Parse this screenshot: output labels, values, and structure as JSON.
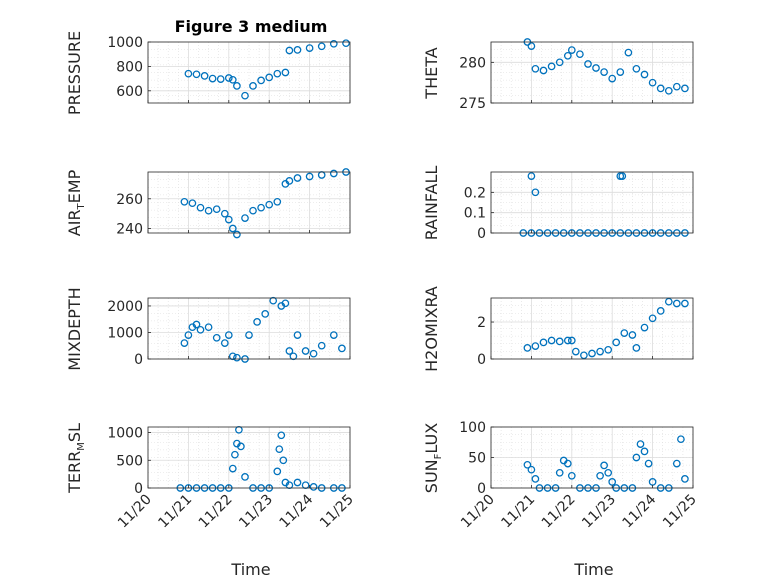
{
  "figure_title": "Figure 3 medium",
  "xlabel": "Time",
  "x_tick_labels": [
    "11/20",
    "11/21",
    "11/22",
    "11/23",
    "11/24",
    "11/25"
  ],
  "colors": {
    "marker": "#0072BD",
    "axis": "#262626",
    "grid": "#dcdcdc"
  },
  "chart_data": [
    {
      "id": "pressure",
      "type": "scatter",
      "title": "Figure 3 medium",
      "ylabel": "PRESSURE",
      "ylim": [
        500,
        1000
      ],
      "yticks": [
        600,
        800,
        1000
      ],
      "ytick_labels": [
        "600",
        "800",
        "1000"
      ],
      "x": [
        21.0,
        21.2,
        21.4,
        21.6,
        21.8,
        22.0,
        22.1,
        22.2,
        22.4,
        22.6,
        22.8,
        23.0,
        23.2,
        23.4,
        23.5,
        23.7,
        24.0,
        24.3,
        24.6,
        24.9
      ],
      "y": [
        740,
        735,
        722,
        700,
        696,
        705,
        690,
        640,
        560,
        640,
        685,
        710,
        740,
        750,
        930,
        935,
        950,
        965,
        985,
        990
      ]
    },
    {
      "id": "theta",
      "type": "scatter",
      "ylabel": "THETA",
      "ylim": [
        275,
        282.5
      ],
      "yticks": [
        275,
        280
      ],
      "ytick_labels": [
        "275",
        "280"
      ],
      "x": [
        20.9,
        21.0,
        21.1,
        21.3,
        21.5,
        21.7,
        21.9,
        22.0,
        22.2,
        22.4,
        22.6,
        22.8,
        23.0,
        23.2,
        23.4,
        23.6,
        23.8,
        24.0,
        24.2,
        24.4,
        24.6,
        24.8
      ],
      "y": [
        282.5,
        282.0,
        279.2,
        279.0,
        279.5,
        280.0,
        280.8,
        281.5,
        281.0,
        279.8,
        279.3,
        278.8,
        278.0,
        278.8,
        281.2,
        279.2,
        278.5,
        277.5,
        276.8,
        276.5,
        277.0,
        276.8
      ]
    },
    {
      "id": "air_temp",
      "type": "scatter",
      "ylabel": "AIR_TEMP",
      "ylim": [
        237,
        278
      ],
      "yticks": [
        240,
        260
      ],
      "ytick_labels": [
        "240",
        "260"
      ],
      "x": [
        20.9,
        21.1,
        21.3,
        21.5,
        21.7,
        21.9,
        22.0,
        22.1,
        22.2,
        22.4,
        22.6,
        22.8,
        23.0,
        23.2,
        23.4,
        23.5,
        23.7,
        24.0,
        24.3,
        24.6,
        24.9
      ],
      "y": [
        258,
        257,
        254,
        252,
        253,
        250,
        246,
        240,
        236,
        247,
        252,
        254,
        256,
        258,
        270,
        272,
        274,
        275,
        276,
        277,
        278
      ]
    },
    {
      "id": "rainfall",
      "type": "scatter",
      "ylabel": "RAINFALL",
      "ylim": [
        0,
        0.3
      ],
      "yticks": [
        0,
        0.1,
        0.2
      ],
      "ytick_labels": [
        "0",
        "0.1",
        "0.2"
      ],
      "x": [
        20.8,
        21.0,
        21.2,
        21.4,
        21.6,
        21.8,
        22.0,
        22.2,
        22.4,
        22.6,
        22.8,
        23.0,
        23.2,
        23.4,
        23.6,
        23.8,
        24.0,
        24.2,
        24.4,
        24.6,
        24.8,
        21.0,
        21.1,
        23.2,
        23.25
      ],
      "y": [
        0,
        0,
        0,
        0,
        0,
        0,
        0,
        0,
        0,
        0,
        0,
        0,
        0,
        0,
        0,
        0,
        0,
        0,
        0,
        0,
        0,
        0.28,
        0.2,
        0.28,
        0.28
      ]
    },
    {
      "id": "mixdepth",
      "type": "scatter",
      "ylabel": "MIXDEPTH",
      "ylim": [
        0,
        2300
      ],
      "yticks": [
        0,
        1000,
        2000
      ],
      "ytick_labels": [
        "0",
        "1000",
        "2000"
      ],
      "x": [
        20.9,
        21.0,
        21.1,
        21.2,
        21.3,
        21.5,
        21.7,
        21.9,
        22.0,
        22.1,
        22.2,
        22.4,
        22.5,
        22.7,
        22.9,
        23.1,
        23.3,
        23.4,
        23.5,
        23.6,
        23.7,
        23.9,
        24.1,
        24.3,
        24.6,
        24.8
      ],
      "y": [
        600,
        900,
        1200,
        1300,
        1100,
        1200,
        800,
        600,
        900,
        100,
        50,
        0,
        900,
        1400,
        1700,
        2200,
        2000,
        2100,
        300,
        100,
        900,
        300,
        200,
        500,
        900,
        400
      ]
    },
    {
      "id": "h2omixra",
      "type": "scatter",
      "ylabel": "H2OMIXRA",
      "ylim": [
        0,
        3.3
      ],
      "yticks": [
        0,
        2
      ],
      "ytick_labels": [
        "0",
        "2"
      ],
      "x": [
        20.9,
        21.1,
        21.3,
        21.5,
        21.7,
        21.9,
        22.0,
        22.1,
        22.3,
        22.5,
        22.7,
        22.9,
        23.1,
        23.3,
        23.5,
        23.6,
        23.8,
        24.0,
        24.2,
        24.4,
        24.6,
        24.8
      ],
      "y": [
        0.6,
        0.7,
        0.9,
        1.0,
        0.95,
        1.0,
        1.0,
        0.4,
        0.2,
        0.3,
        0.4,
        0.5,
        0.9,
        1.4,
        1.3,
        0.6,
        1.7,
        2.2,
        2.6,
        3.1,
        3.0,
        3.0
      ]
    },
    {
      "id": "terr_msl",
      "type": "scatter",
      "ylabel": "TERR_MSL",
      "ylim": [
        0,
        1100
      ],
      "yticks": [
        0,
        500,
        1000
      ],
      "ytick_labels": [
        "0",
        "500",
        "1000"
      ],
      "x": [
        20.8,
        21.0,
        21.2,
        21.4,
        21.6,
        21.8,
        22.0,
        22.1,
        22.15,
        22.2,
        22.25,
        22.3,
        22.4,
        22.6,
        22.8,
        23.0,
        23.2,
        23.25,
        23.3,
        23.35,
        23.4,
        23.5,
        23.7,
        23.9,
        24.1,
        24.3,
        24.6,
        24.8
      ],
      "y": [
        0,
        0,
        0,
        0,
        0,
        0,
        0,
        350,
        600,
        800,
        1050,
        750,
        200,
        0,
        0,
        0,
        300,
        700,
        950,
        500,
        100,
        50,
        100,
        50,
        20,
        0,
        0,
        0
      ]
    },
    {
      "id": "sun_flux",
      "type": "scatter",
      "ylabel": "SUN_FLUX",
      "ylim": [
        0,
        100
      ],
      "yticks": [
        0,
        50,
        100
      ],
      "ytick_labels": [
        "0",
        "50",
        "100"
      ],
      "x": [
        20.9,
        21.0,
        21.1,
        21.2,
        21.4,
        21.6,
        21.7,
        21.8,
        21.9,
        22.0,
        22.2,
        22.4,
        22.6,
        22.7,
        22.8,
        22.9,
        23.0,
        23.1,
        23.3,
        23.5,
        23.6,
        23.7,
        23.8,
        23.9,
        24.0,
        24.2,
        24.4,
        24.6,
        24.7,
        24.8
      ],
      "y": [
        38,
        30,
        15,
        0,
        0,
        0,
        25,
        45,
        40,
        20,
        0,
        0,
        0,
        20,
        37,
        25,
        10,
        0,
        0,
        0,
        50,
        72,
        60,
        40,
        10,
        0,
        0,
        40,
        80,
        15
      ]
    }
  ]
}
